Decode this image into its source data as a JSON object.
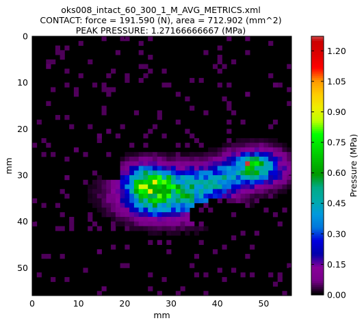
{
  "title_lines": [
    "oks008_intact_60_300_1_M_AVG_METRICS.xml",
    "CONTACT: force = 191.590 (N), area = 712.902 (mm^2)",
    "PEAK PRESSURE: 1.27166666667 (MPa)"
  ],
  "chart_data": {
    "type": "heatmap",
    "title": "oks008_intact_60_300_1_M_AVG_METRICS.xml",
    "xlabel": "mm",
    "ylabel": "mm",
    "xlim": [
      0,
      56
    ],
    "ylim": [
      56,
      0
    ],
    "xticks": [
      "0",
      "10",
      "20",
      "30",
      "40",
      "50"
    ],
    "yticks": [
      "0",
      "10",
      "20",
      "30",
      "40",
      "50"
    ],
    "colorbar": {
      "label": "Pressure (MPa)",
      "range": [
        0.0,
        1.27166666667
      ],
      "ticks": [
        "0.00",
        "0.15",
        "0.30",
        "0.45",
        "0.60",
        "0.75",
        "0.90",
        "1.05",
        "1.20"
      ],
      "colormap": "nipy_spectral"
    },
    "contact_force_N": 191.59,
    "contact_area_mm2": 712.902,
    "peak_pressure_MPa": 1.27166666667,
    "grid": false
  }
}
